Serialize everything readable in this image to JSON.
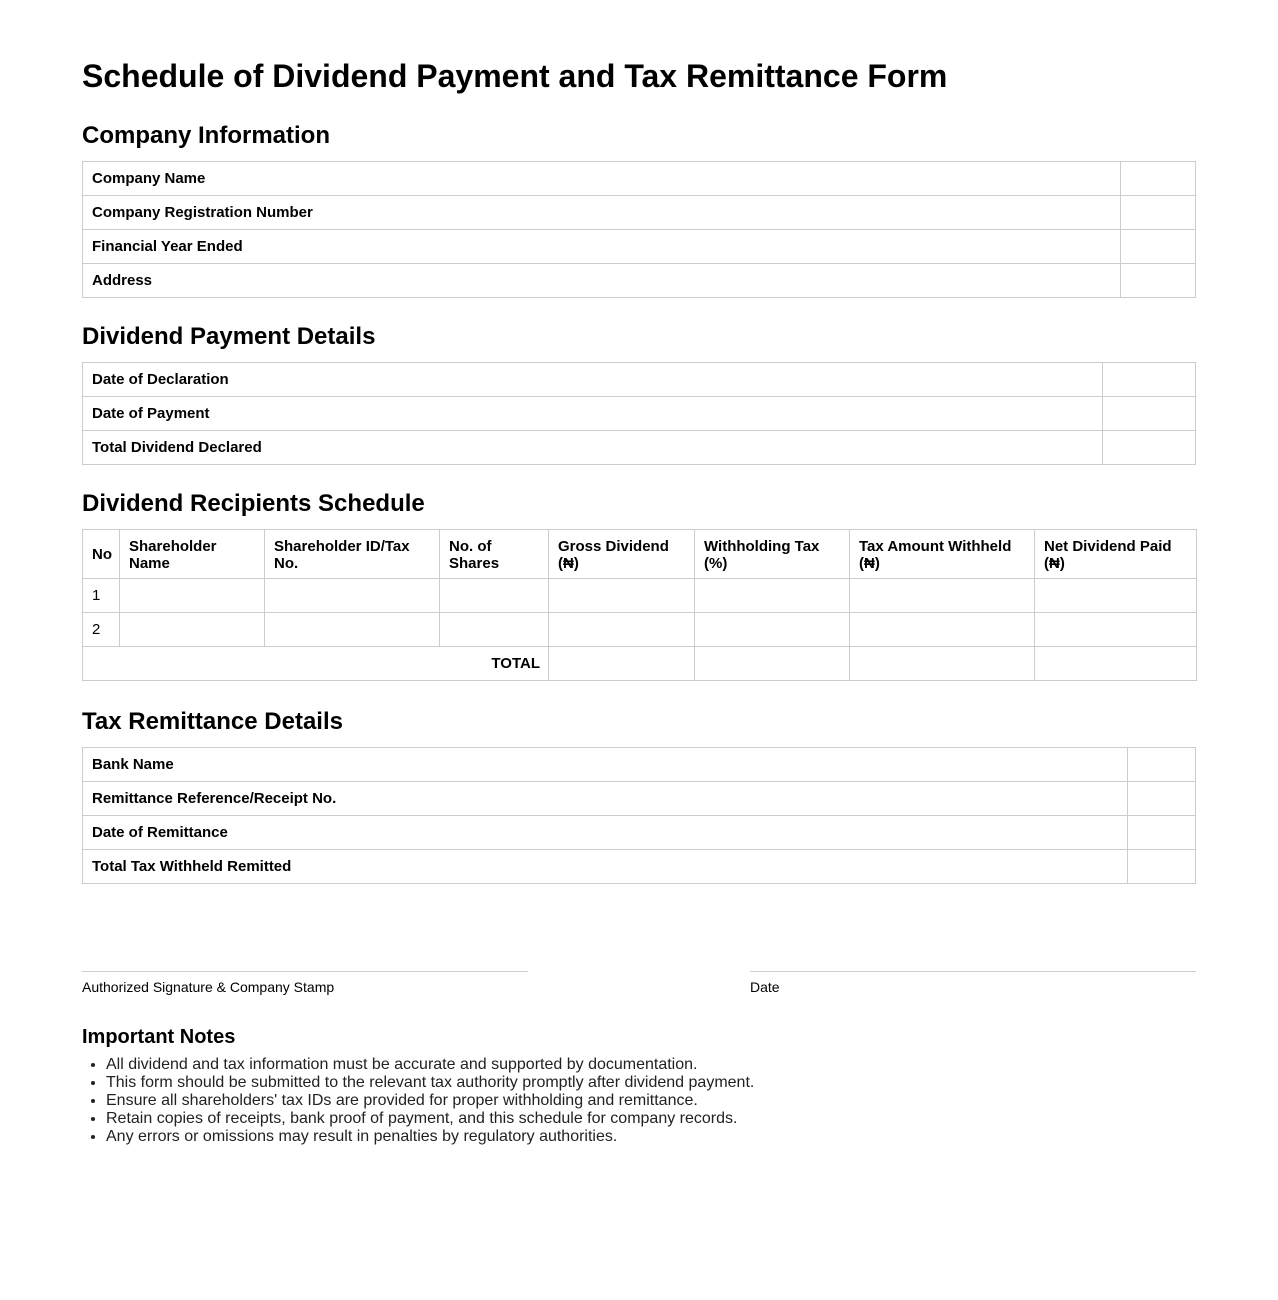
{
  "title": "Schedule of Dividend Payment and Tax Remittance Form",
  "company": {
    "heading": "Company Information",
    "rows": [
      "Company Name",
      "Company Registration Number",
      "Financial Year Ended",
      "Address"
    ]
  },
  "dividend": {
    "heading": "Dividend Payment Details",
    "rows": [
      "Date of Declaration",
      "Date of Payment",
      "Total Dividend Declared"
    ]
  },
  "schedule": {
    "heading": "Dividend Recipients Schedule",
    "columns": [
      "No",
      "Shareholder Name",
      "Shareholder ID/Tax No.",
      "No. of Shares",
      "Gross Dividend (₦)",
      "Withholding Tax (%)",
      "Tax Amount Withheld (₦)",
      "Net Dividend Paid (₦)"
    ],
    "rows": [
      "1",
      "2"
    ],
    "total_label": "TOTAL"
  },
  "remittance": {
    "heading": "Tax Remittance Details",
    "rows": [
      "Bank Name",
      "Remittance Reference/Receipt No.",
      "Date of Remittance",
      "Total Tax Withheld Remitted"
    ]
  },
  "signature": {
    "left": "Authorized Signature & Company Stamp",
    "right": "Date"
  },
  "notes": {
    "heading": "Important Notes",
    "items": [
      "All dividend and tax information must be accurate and supported by documentation.",
      "This form should be submitted to the relevant tax authority promptly after dividend payment.",
      "Ensure all shareholders' tax IDs are provided for proper withholding and remittance.",
      "Retain copies of receipts, bank proof of payment, and this schedule for company records.",
      "Any errors or omissions may result in penalties by regulatory authorities."
    ]
  }
}
